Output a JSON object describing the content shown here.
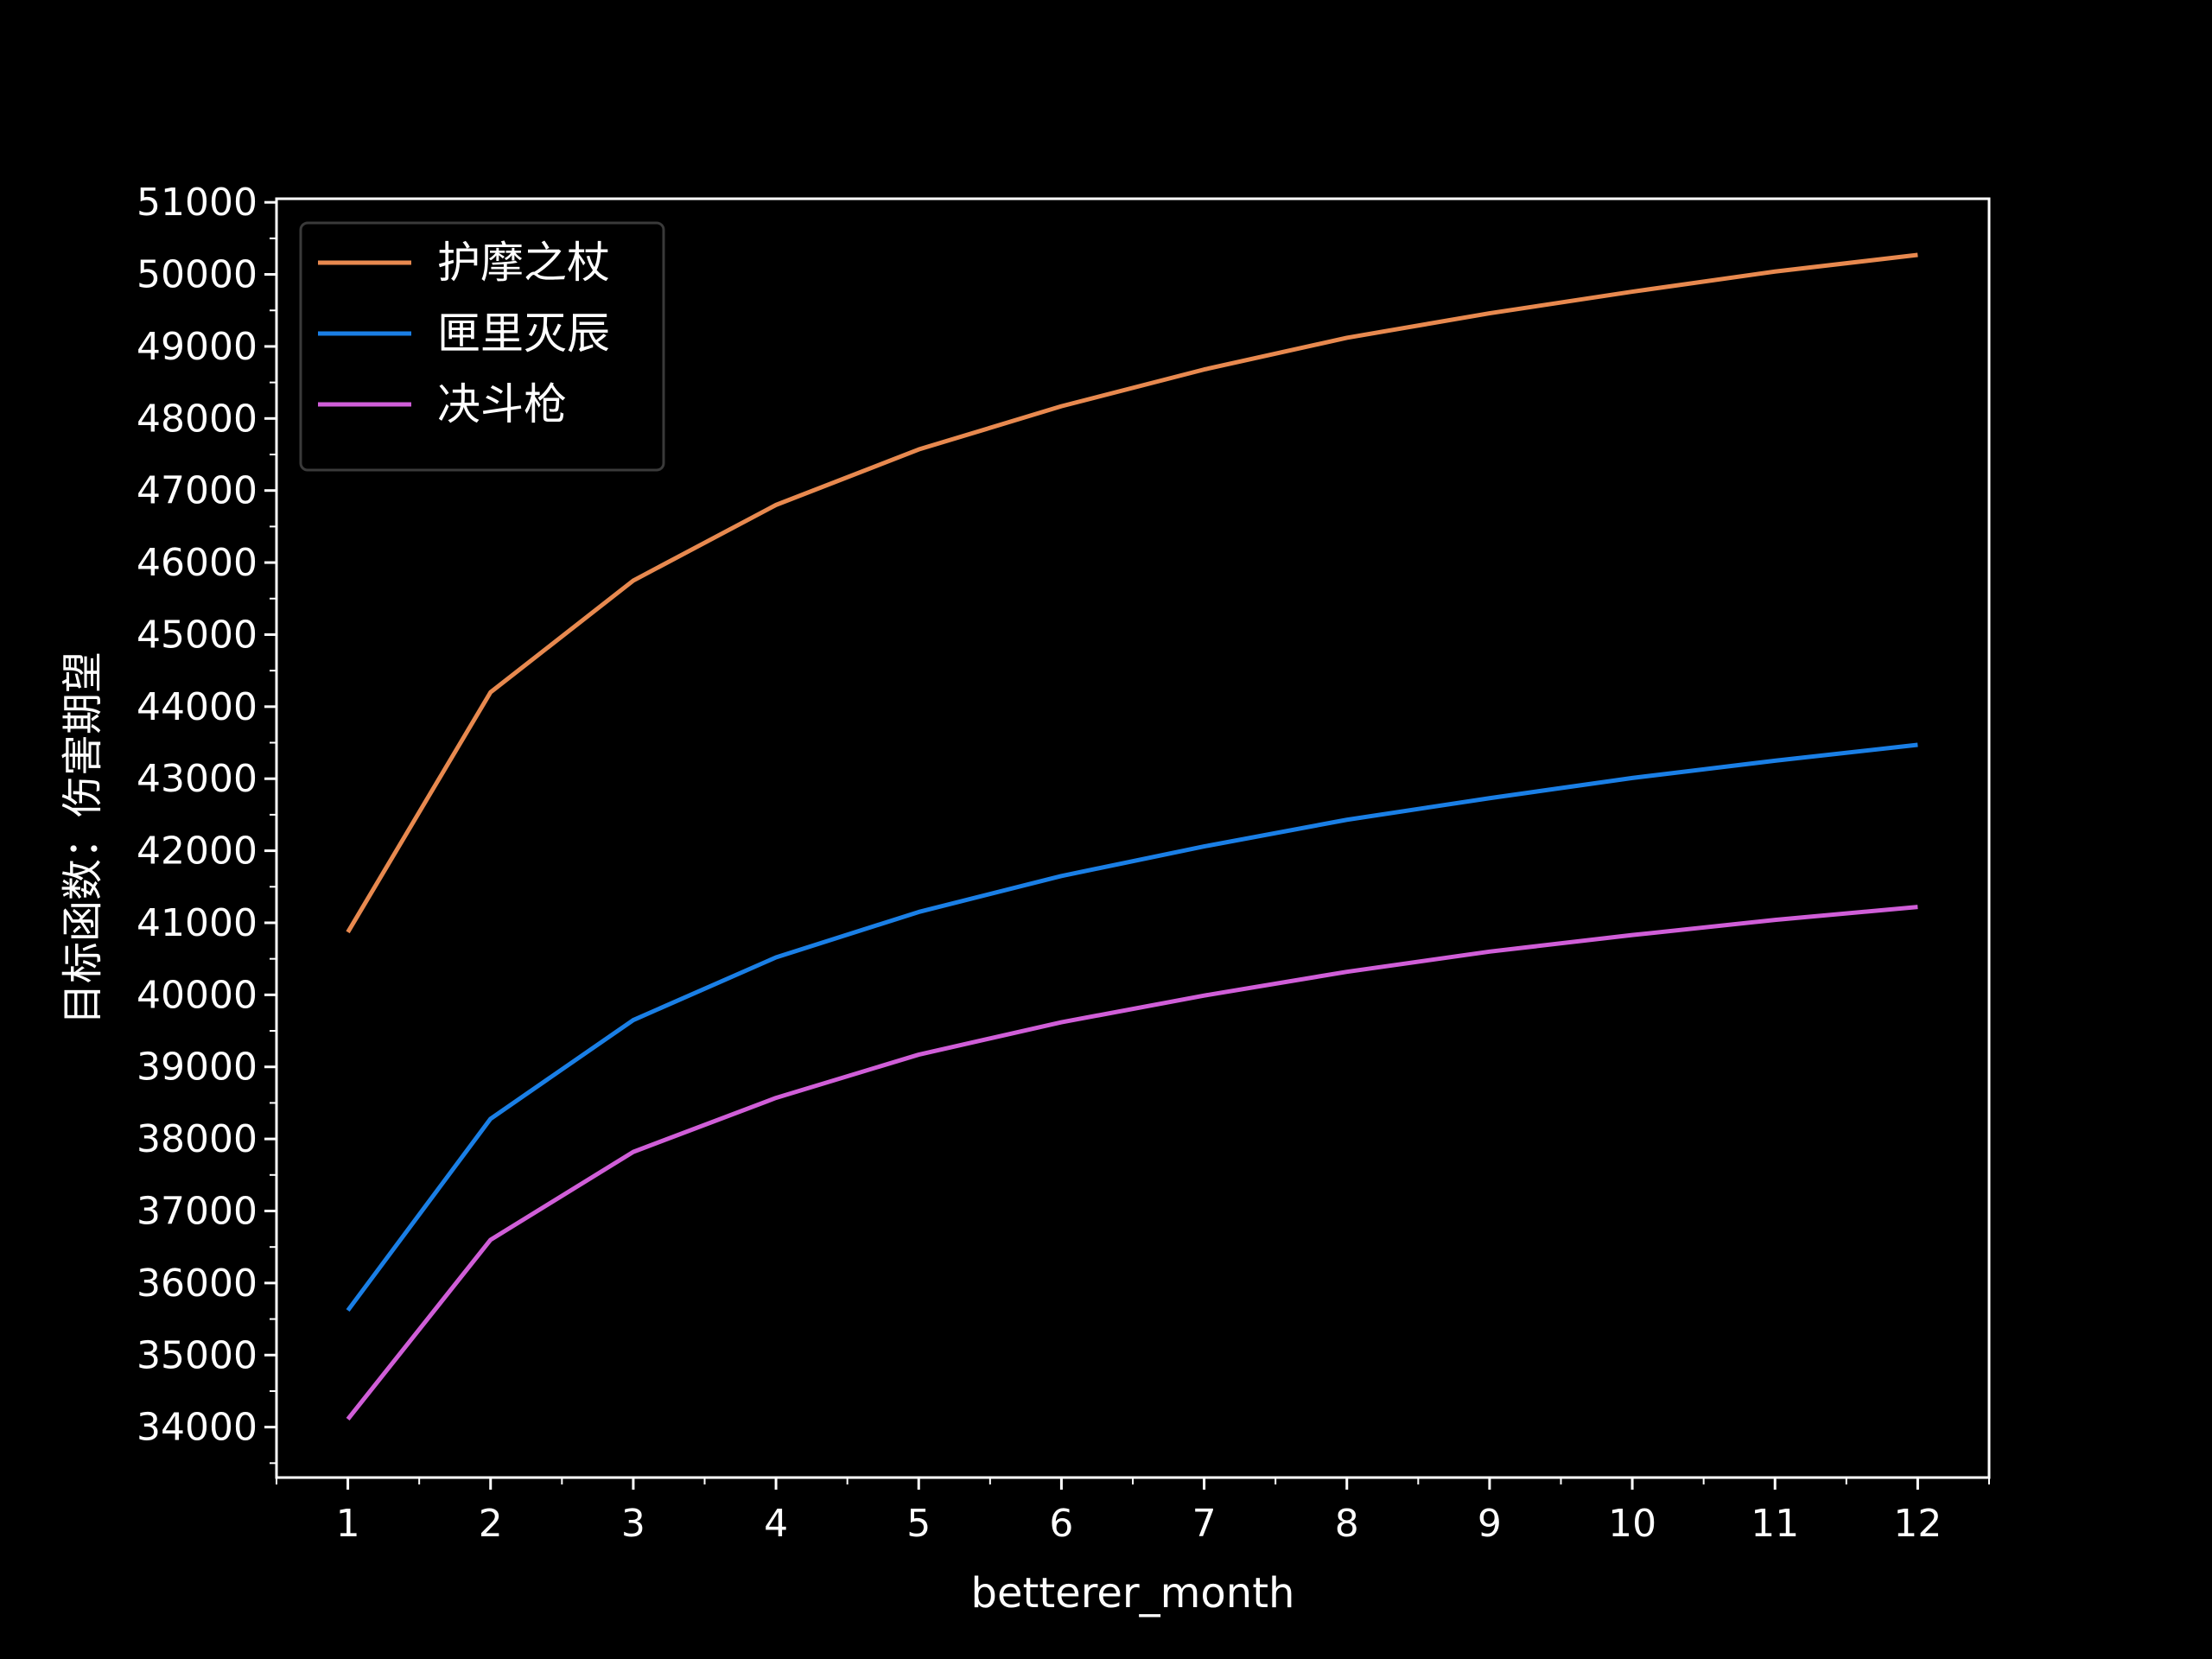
{
  "chart_data": {
    "type": "line",
    "xlabel": "betterer_month",
    "ylabel": "目标函数：伤害期望",
    "x": [
      1,
      2,
      3,
      4,
      5,
      6,
      7,
      8,
      9,
      10,
      11,
      12
    ],
    "xlim": [
      0.5,
      12.5
    ],
    "ylim": [
      33300,
      51050
    ],
    "y_ticks": [
      34000,
      35000,
      36000,
      37000,
      38000,
      39000,
      40000,
      41000,
      42000,
      43000,
      44000,
      45000,
      46000,
      47000,
      48000,
      49000,
      50000,
      51000
    ],
    "legend_position": "top-left",
    "grid": false,
    "background": "#000000",
    "series": [
      {
        "name": "护摩之杖",
        "color": "#e8894f",
        "values": [
          40870,
          44200,
          45750,
          46800,
          47570,
          48170,
          48680,
          49120,
          49460,
          49760,
          50040,
          50270
        ]
      },
      {
        "name": "匣里灭辰",
        "color": "#1a7fe6",
        "values": [
          35620,
          38280,
          39650,
          40520,
          41150,
          41650,
          42060,
          42430,
          42730,
          43010,
          43250,
          43470
        ]
      },
      {
        "name": "决斗枪",
        "color": "#d05ed8",
        "values": [
          34110,
          36600,
          37820,
          38570,
          39170,
          39620,
          39990,
          40320,
          40600,
          40830,
          41040,
          41220
        ]
      }
    ]
  }
}
